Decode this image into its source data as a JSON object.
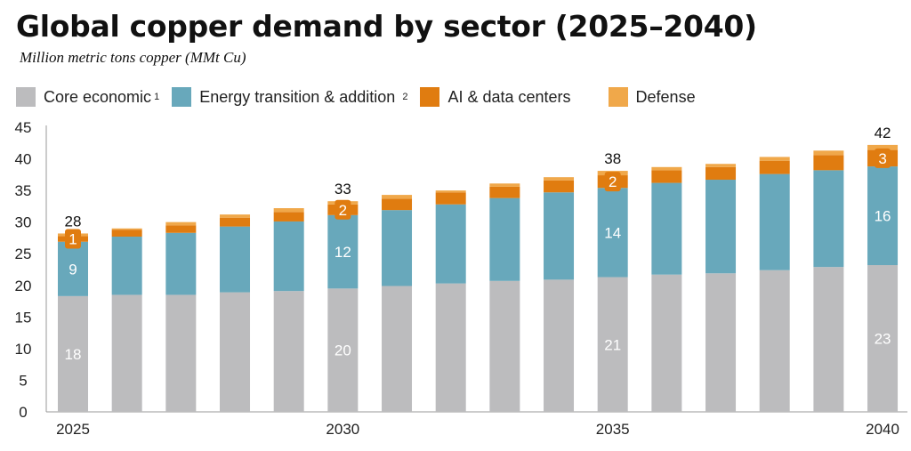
{
  "title": "Global copper demand by sector (2025–2040)",
  "subtitle": "Million metric tons copper (MMt Cu)",
  "chart_data": {
    "type": "bar",
    "stacked": true,
    "title": "Global copper demand by sector (2025–2040)",
    "ylabel": "Million metric tons copper (MMt Cu)",
    "xlabel": "",
    "ylim": [
      0,
      45
    ],
    "yticks": [
      "0",
      "5",
      "10",
      "15",
      "20",
      "25",
      "30",
      "35",
      "40",
      "45"
    ],
    "categories": [
      2025,
      2026,
      2027,
      2028,
      2029,
      2030,
      2031,
      2032,
      2033,
      2034,
      2035,
      2036,
      2037,
      2038,
      2039,
      2040
    ],
    "xtick_labels": {
      "0": "2025",
      "5": "2030",
      "10": "2035",
      "15": "2040"
    },
    "legend_position": "top",
    "series": [
      {
        "name": "Core economic",
        "note": "1",
        "color": "#bcbcbe",
        "values": [
          18.3,
          18.5,
          18.5,
          18.9,
          19.1,
          19.5,
          19.9,
          20.3,
          20.7,
          20.9,
          21.3,
          21.7,
          21.9,
          22.4,
          22.9,
          23.2
        ]
      },
      {
        "name": "Energy transition & addition",
        "note": "2",
        "color": "#68a8bb",
        "values": [
          8.6,
          9.2,
          9.8,
          10.4,
          11.0,
          11.6,
          12.0,
          12.5,
          13.1,
          13.8,
          14.1,
          14.5,
          14.8,
          15.2,
          15.3,
          15.6
        ]
      },
      {
        "name": "AI & data centers",
        "note": "",
        "color": "#e07c10",
        "values": [
          0.9,
          1.1,
          1.2,
          1.4,
          1.5,
          1.7,
          1.8,
          1.9,
          1.8,
          1.9,
          2.0,
          2.0,
          2.0,
          2.1,
          2.4,
          2.6
        ]
      },
      {
        "name": "Defense",
        "note": "",
        "color": "#f0a84a",
        "values": [
          0.4,
          0.2,
          0.5,
          0.5,
          0.6,
          0.5,
          0.6,
          0.3,
          0.5,
          0.5,
          0.7,
          0.5,
          0.5,
          0.6,
          0.7,
          0.8
        ]
      }
    ],
    "data_labels": [
      {
        "index": 0,
        "total": "28",
        "core": "18",
        "energy": "9",
        "ai": "1"
      },
      {
        "index": 5,
        "total": "33",
        "core": "20",
        "energy": "12",
        "ai": "2"
      },
      {
        "index": 10,
        "total": "38",
        "core": "21",
        "energy": "14",
        "ai": "2"
      },
      {
        "index": 15,
        "total": "42",
        "core": "23",
        "energy": "16",
        "ai": "3"
      }
    ]
  }
}
